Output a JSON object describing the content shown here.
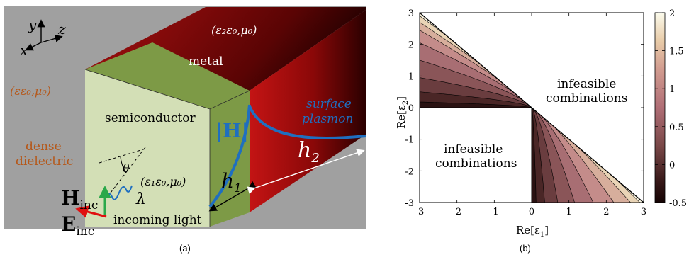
{
  "panel_a": {
    "caption": "(a)",
    "axes": {
      "y": "y",
      "z": "z",
      "x": "x"
    },
    "metal_params": "(ε₂ε₀,μ₀)",
    "metal_label": "metal",
    "outer_params": "(εε₀,μ₀)",
    "semiconductor_label": "semiconductor",
    "semiconductor_params": "(ε₁ε₀,μ₀)",
    "dense_line1": "dense",
    "dense_line2": "dielectric",
    "h_field": "|H|",
    "plasmon_line1": "surface",
    "plasmon_line2": "plasmon",
    "h1_base": "h",
    "h1_sub": "1",
    "h2_base": "h",
    "h2_sub": "2",
    "theta": "θ",
    "lambda": "λ",
    "h_inc_base": "H",
    "h_inc_sub": "inc",
    "e_inc_base": "E",
    "e_inc_sub": "inc",
    "incoming_light": "incoming light",
    "colors": {
      "background": "#a0a0a0",
      "semiconductor": "#d3dfb6",
      "semiconductor_side": "#7d9a46",
      "metal": "#b01010",
      "field_line": "#1f6fc0",
      "orange_text": "#b5581a"
    }
  },
  "panel_b": {
    "caption": "(b)",
    "xlabel_base": "Re[ε",
    "xlabel_sub": "1",
    "xlabel_end": "]",
    "ylabel_base": "Re[ε",
    "ylabel_sub": "2",
    "ylabel_end": "]",
    "annot_top_1": "infeasible",
    "annot_top_2": "combinations",
    "annot_bottom_1": "infeasible",
    "annot_bottom_2": "combinations"
  },
  "chart_data": {
    "type": "heatmap",
    "xlabel": "Re[ε1]",
    "ylabel": "Re[ε2]",
    "xlim": [
      -3,
      3
    ],
    "ylim": [
      -3,
      3
    ],
    "x_ticks": [
      -3,
      -2,
      -1,
      0,
      1,
      2,
      3
    ],
    "y_ticks": [
      3,
      2,
      1,
      0,
      -1,
      -2,
      -3
    ],
    "colorbar": {
      "ticks": [
        2,
        1.5,
        1,
        0.5,
        0,
        -0.5
      ],
      "range": [
        -0.5,
        2
      ]
    },
    "feasible_regions": [
      "Re[ε1] < 0, 0 < Re[ε2] < -Re[ε1]",
      "Re[ε2] < 0, 0 < Re[ε1] < -Re[ε2]"
    ],
    "infeasible_regions": [
      "above the line Re[ε2] = -Re[ε1]",
      "Re[ε1] < 0 and Re[ε2] < 0"
    ]
  }
}
